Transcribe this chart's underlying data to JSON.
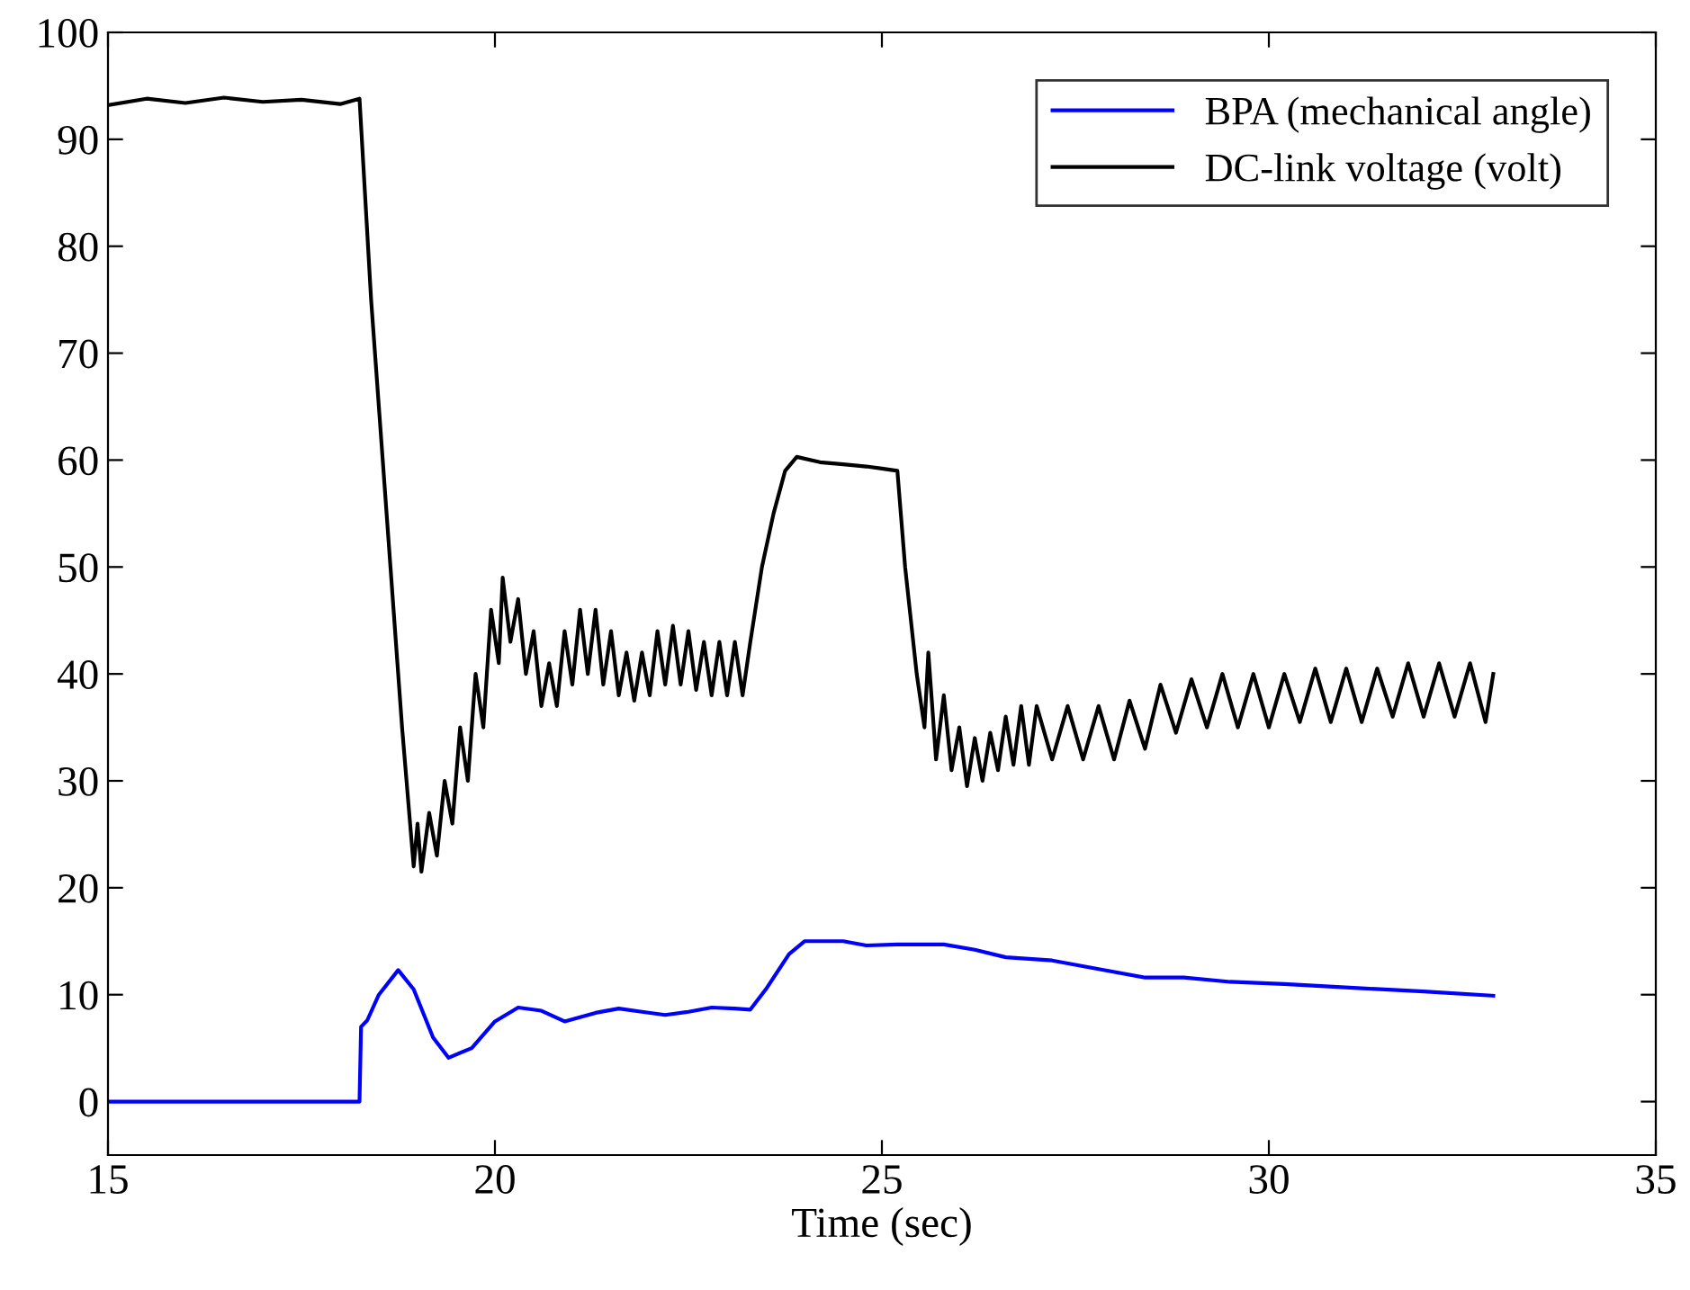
{
  "chart_data": {
    "type": "line",
    "xlabel": "Time (sec)",
    "xlim": [
      15,
      35
    ],
    "ylim": [
      -5,
      100
    ],
    "xticks": [
      15,
      20,
      25,
      30,
      35
    ],
    "yticks": [
      0,
      10,
      20,
      30,
      40,
      50,
      60,
      70,
      80,
      90,
      100
    ],
    "grid": false,
    "legend": "top right",
    "line_style": "solid",
    "marker": "none",
    "series": [
      {
        "name": "BPA (mechanical angle)",
        "color": "#0000ff",
        "x": [
          15,
          18.25,
          18.27,
          18.35,
          18.5,
          18.75,
          18.95,
          19.2,
          19.4,
          19.7,
          20.0,
          20.3,
          20.6,
          20.9,
          21.3,
          21.6,
          21.9,
          22.2,
          22.5,
          22.8,
          23.1,
          23.3,
          23.5,
          23.8,
          24.0,
          24.5,
          24.8,
          25.2,
          25.8,
          26.2,
          26.6,
          27.2,
          27.8,
          28.4,
          28.9,
          29.5,
          30.2,
          31.2,
          32.0,
          32.9
        ],
        "values": [
          0,
          0,
          7,
          7.6,
          10,
          12.3,
          10.5,
          6,
          4.1,
          5,
          7.5,
          8.8,
          8.5,
          7.5,
          8.3,
          8.7,
          8.4,
          8.1,
          8.4,
          8.8,
          8.7,
          8.6,
          10.5,
          13.8,
          15,
          15,
          14.6,
          14.7,
          14.7,
          14.2,
          13.5,
          13.2,
          12.4,
          11.6,
          11.6,
          11.2,
          11.0,
          10.6,
          10.3,
          9.9
        ]
      },
      {
        "name": "DC-link voltage (volt)",
        "color": "#000000",
        "x": [
          15,
          15.5,
          16,
          16.5,
          17,
          17.5,
          18,
          18.25,
          18.4,
          18.6,
          18.8,
          18.95,
          19.0,
          19.05,
          19.15,
          19.25,
          19.35,
          19.45,
          19.55,
          19.65,
          19.75,
          19.85,
          19.95,
          20.05,
          20.1,
          20.2,
          20.3,
          20.4,
          20.5,
          20.6,
          20.7,
          20.8,
          20.9,
          21.0,
          21.1,
          21.2,
          21.3,
          21.4,
          21.5,
          21.6,
          21.7,
          21.8,
          21.9,
          22.0,
          22.1,
          22.2,
          22.3,
          22.4,
          22.5,
          22.6,
          22.7,
          22.8,
          22.9,
          23.0,
          23.1,
          23.2,
          23.3,
          23.45,
          23.6,
          23.75,
          23.9,
          24.2,
          24.5,
          24.8,
          25.0,
          25.2,
          25.3,
          25.45,
          25.55,
          25.6,
          25.7,
          25.8,
          25.9,
          26.0,
          26.1,
          26.2,
          26.3,
          26.4,
          26.5,
          26.6,
          26.7,
          26.8,
          26.9,
          27.0,
          27.2,
          27.4,
          27.6,
          27.8,
          28.0,
          28.2,
          28.4,
          28.6,
          28.8,
          29.0,
          29.2,
          29.4,
          29.6,
          29.8,
          30.0,
          30.2,
          30.4,
          30.6,
          30.8,
          31.0,
          31.2,
          31.4,
          31.6,
          31.8,
          32.0,
          32.2,
          32.4,
          32.6,
          32.8,
          32.9
        ],
        "values": [
          93.2,
          93.8,
          93.4,
          93.9,
          93.5,
          93.7,
          93.3,
          93.8,
          75,
          55,
          35,
          22,
          26,
          21.5,
          27,
          23,
          30,
          26,
          35,
          30,
          40,
          35,
          46,
          41,
          49,
          43,
          47,
          40,
          44,
          37,
          41,
          37,
          44,
          39,
          46,
          40,
          46,
          39,
          44,
          38,
          42,
          37.5,
          42,
          38,
          44,
          39,
          44.5,
          39,
          44,
          38.5,
          43,
          38,
          43,
          38,
          43,
          38,
          43,
          50,
          55,
          59,
          60.3,
          59.8,
          59.6,
          59.4,
          59.2,
          59,
          50,
          40,
          35,
          42,
          32,
          38,
          31,
          35,
          29.5,
          34,
          30,
          34.5,
          31,
          36,
          31.5,
          37,
          31.5,
          37,
          32,
          37,
          32,
          37,
          32,
          37.5,
          33,
          39,
          34.5,
          39.5,
          35,
          40,
          35,
          40,
          35,
          40,
          35.5,
          40.5,
          35.5,
          40.5,
          35.5,
          40.5,
          36,
          41,
          36,
          41,
          36,
          41,
          35.5,
          40
        ]
      }
    ]
  }
}
